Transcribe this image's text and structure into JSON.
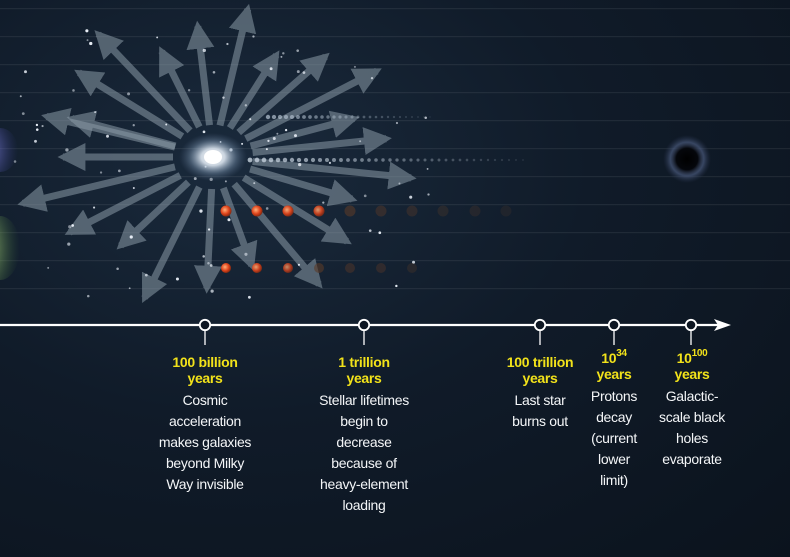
{
  "timeline": {
    "events": [
      {
        "when": "100 billion years",
        "desc": [
          "Cosmic",
          "acceleration",
          "makes galaxies",
          "beyond Milky",
          "Way invisible"
        ]
      },
      {
        "when": "1 trillion years",
        "desc": [
          "Stellar lifetimes",
          "begin to",
          "decrease",
          "because of",
          "heavy-element",
          "loading"
        ]
      },
      {
        "when": "100 trillion years",
        "desc": [
          "Last star",
          "burns out"
        ]
      },
      {
        "when_base": "10",
        "when_exp": "34",
        "when_unit": "years",
        "desc": [
          "Protons",
          "decay",
          "(current",
          "lower",
          "limit)"
        ]
      },
      {
        "when_base": "10",
        "when_exp": "100",
        "when_unit": "years",
        "desc": [
          "Galactic-",
          "scale black",
          "holes",
          "evaporate"
        ]
      }
    ]
  },
  "colors": {
    "title": "#f2e21a",
    "text": "#f4f6f8",
    "axis": "#ffffff",
    "arrows": "#8a9aa6",
    "stars_bright": "#e0451c",
    "stars_dim": "#5a3a28"
  }
}
